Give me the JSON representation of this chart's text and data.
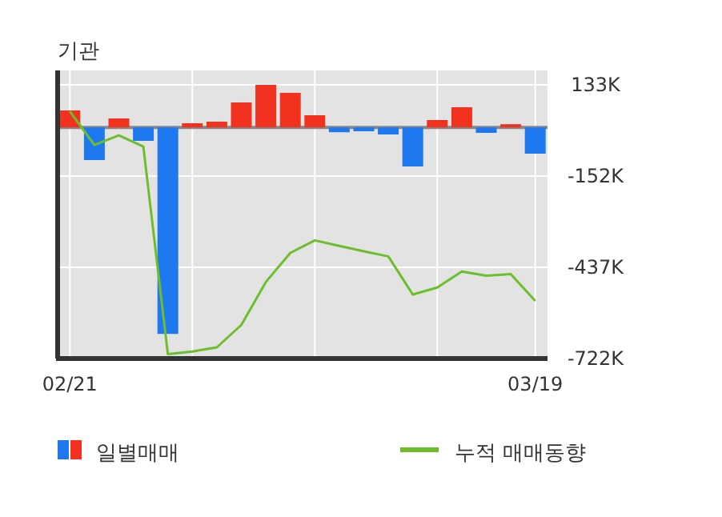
{
  "chart_data": {
    "type": "bar",
    "title": "기관",
    "categories": [
      "02/21",
      null,
      null,
      null,
      null,
      null,
      null,
      null,
      null,
      null,
      null,
      null,
      null,
      null,
      null,
      null,
      null,
      null,
      null,
      "03/19"
    ],
    "ylim": [
      -722,
      133
    ],
    "yticks": [
      {
        "value": 133,
        "label": "133K"
      },
      {
        "value": -152,
        "label": "-152K"
      },
      {
        "value": -437,
        "label": "-437K"
      },
      {
        "value": -722,
        "label": "-722K"
      }
    ],
    "grid": true,
    "legend": "bottom",
    "series": [
      {
        "name": "일별매매",
        "color": "#1e78f0",
        "colors": [
          "#f0321e",
          "#1e78f0",
          "#f0321e",
          "#1e78f0",
          "#1e78f0",
          "#f0321e",
          "#f0321e",
          "#f0321e",
          "#f0321e",
          "#f0321e",
          "#f0321e",
          "#1e78f0",
          "#1e78f0",
          "#1e78f0",
          "#1e78f0",
          "#f0321e",
          "#f0321e",
          "#1e78f0",
          "#f0321e",
          "#1e78f0"
        ],
        "values": [
          53,
          -102,
          28,
          -42,
          -645,
          13,
          18,
          78,
          133,
          108,
          38,
          -15,
          -12,
          -22,
          -122,
          23,
          63,
          -17,
          10,
          -82
        ]
      },
      {
        "name": "누적 매매동향",
        "type": "line",
        "color": "#6cbf2a",
        "values": [
          50,
          -55,
          -25,
          -60,
          -708,
          -700,
          -687,
          -617,
          -483,
          -392,
          -353,
          -370,
          -387,
          -403,
          -522,
          -500,
          -450,
          -463,
          -458,
          -542
        ]
      }
    ]
  }
}
